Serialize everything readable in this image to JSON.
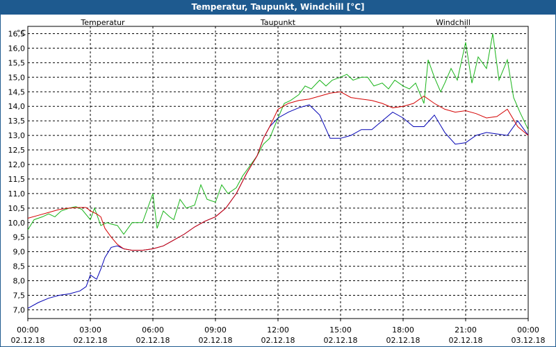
{
  "window": {
    "title": "Temperatur, Taupunkt, Windchill [°C]"
  },
  "colors": {
    "Temperatur": "#d40000",
    "Taupunkt": "#0000b4",
    "Windchill": "#18b418",
    "titlebar": "#1e5a8f"
  },
  "chart_data": {
    "type": "line",
    "title": "Temperatur, Taupunkt, Windchill [°C]",
    "ylabel": "°C",
    "xlabel": "",
    "ylim": [
      6.7,
      16.75
    ],
    "xlim": [
      0,
      24
    ],
    "y_ticks": [
      "7,0",
      "7,5",
      "8,0",
      "8,5",
      "9,0",
      "9,5",
      "10,0",
      "10,5",
      "11,0",
      "11,5",
      "12,0",
      "12,5",
      "13,0",
      "13,5",
      "14,0",
      "14,5",
      "15,0",
      "15,5",
      "16,0",
      "16,5"
    ],
    "x_ticks": [
      {
        "time": "00:00",
        "date": "02.12.18"
      },
      {
        "time": "03:00",
        "date": "02.12.18"
      },
      {
        "time": "06:00",
        "date": "02.12.18"
      },
      {
        "time": "09:00",
        "date": "02.12.18"
      },
      {
        "time": "12:00",
        "date": "02.12.18"
      },
      {
        "time": "15:00",
        "date": "02.12.18"
      },
      {
        "time": "18:00",
        "date": "02.12.18"
      },
      {
        "time": "21:00",
        "date": "02.12.18"
      },
      {
        "time": "00:00",
        "date": "03.12.18"
      }
    ],
    "grid": true,
    "legend": "top, above plot area",
    "x_unit": "hours since 02.12.18 00:00",
    "series": [
      {
        "name": "Temperatur",
        "x": [
          0,
          0.5,
          1,
          1.5,
          2,
          2.5,
          2.8,
          3,
          3.3,
          3.5,
          3.7,
          4,
          4.3,
          4.6,
          5,
          5.5,
          6,
          6.5,
          7,
          7.5,
          8,
          8.5,
          9,
          9.5,
          10,
          10.5,
          11,
          11.3,
          11.6,
          12,
          12.5,
          13,
          13.5,
          14,
          14.5,
          15,
          15.5,
          16,
          16.5,
          17,
          17.5,
          18,
          18.5,
          19,
          19.5,
          20,
          20.5,
          21,
          21.5,
          22,
          22.5,
          23,
          23.5,
          24
        ],
        "values": [
          10.15,
          10.25,
          10.35,
          10.45,
          10.5,
          10.52,
          10.52,
          10.4,
          10.3,
          10.2,
          9.8,
          9.5,
          9.25,
          9.1,
          9.05,
          9.05,
          9.1,
          9.2,
          9.4,
          9.6,
          9.85,
          10.05,
          10.2,
          10.5,
          11.0,
          11.7,
          12.3,
          12.9,
          13.3,
          13.9,
          14.1,
          14.2,
          14.25,
          14.35,
          14.45,
          14.5,
          14.3,
          14.25,
          14.2,
          14.1,
          13.95,
          14.0,
          14.1,
          14.35,
          14.1,
          13.9,
          13.8,
          13.85,
          13.75,
          13.6,
          13.65,
          13.9,
          13.3,
          13.0
        ],
        "stats": {
          "min": 9.05,
          "max": 14.5
        }
      },
      {
        "name": "Taupunkt",
        "x": [
          0,
          0.5,
          1,
          1.5,
          2,
          2.5,
          2.8,
          3,
          3.3,
          3.5,
          3.7,
          4,
          4.3,
          4.6,
          5,
          5.5,
          6,
          6.5,
          7,
          7.5,
          8,
          8.5,
          9,
          9.5,
          10,
          10.5,
          11,
          11.3,
          11.6,
          12,
          12.5,
          13,
          13.5,
          14,
          14.5,
          15,
          15.5,
          16,
          16.5,
          17,
          17.5,
          18,
          18.5,
          19,
          19.5,
          20,
          20.5,
          21,
          21.5,
          22,
          22.5,
          23,
          23.5,
          24
        ],
        "values": [
          7.05,
          7.25,
          7.4,
          7.5,
          7.55,
          7.65,
          7.8,
          8.2,
          8.05,
          8.4,
          8.8,
          9.15,
          9.2,
          9.1,
          9.05,
          9.05,
          9.1,
          9.2,
          9.4,
          9.6,
          9.85,
          10.05,
          10.2,
          10.5,
          11.0,
          11.7,
          12.3,
          12.9,
          13.3,
          13.6,
          13.8,
          13.95,
          14.05,
          13.7,
          12.9,
          12.9,
          13.0,
          13.2,
          13.2,
          13.5,
          13.8,
          13.6,
          13.3,
          13.3,
          13.7,
          13.1,
          12.7,
          12.75,
          13.0,
          13.1,
          13.05,
          13.0,
          13.5,
          13.0
        ],
        "stats": {
          "min": 7.05,
          "max": 14.05
        }
      },
      {
        "name": "Windchill",
        "x": [
          0,
          0.3,
          0.7,
          1,
          1.3,
          1.6,
          2,
          2.3,
          2.6,
          3,
          3.2,
          3.5,
          3.8,
          4,
          4.3,
          4.6,
          5,
          5.5,
          6,
          6.2,
          6.5,
          6.8,
          7,
          7.3,
          7.6,
          8,
          8.3,
          8.6,
          9,
          9.3,
          9.6,
          10,
          10.3,
          10.6,
          11,
          11.3,
          11.6,
          12,
          12.3,
          12.6,
          13,
          13.3,
          13.6,
          14,
          14.3,
          14.6,
          15,
          15.3,
          15.6,
          16,
          16.3,
          16.6,
          17,
          17.3,
          17.6,
          18,
          18.3,
          18.6,
          19,
          19.2,
          19.5,
          19.8,
          20,
          20.3,
          20.6,
          21,
          21.3,
          21.6,
          22,
          22.3,
          22.6,
          23,
          23.3,
          23.6,
          24
        ],
        "values": [
          9.75,
          10.1,
          10.2,
          10.3,
          10.2,
          10.4,
          10.5,
          10.55,
          10.45,
          10.1,
          10.5,
          9.9,
          10.0,
          9.95,
          9.9,
          9.6,
          10.0,
          10.0,
          11.0,
          9.8,
          10.4,
          10.2,
          10.1,
          10.8,
          10.5,
          10.6,
          11.3,
          10.8,
          10.7,
          11.3,
          11.0,
          11.2,
          11.6,
          11.9,
          12.3,
          12.7,
          12.9,
          13.6,
          14.1,
          14.2,
          14.4,
          14.7,
          14.6,
          14.9,
          14.7,
          14.9,
          15.0,
          15.1,
          14.9,
          15.0,
          15.0,
          14.7,
          14.8,
          14.6,
          14.9,
          14.7,
          14.6,
          14.8,
          14.1,
          15.6,
          15.0,
          14.5,
          14.8,
          15.3,
          14.9,
          16.2,
          14.8,
          15.7,
          15.3,
          16.5,
          14.9,
          15.6,
          14.3,
          13.8,
          13.2
        ],
        "stats": {
          "min": 9.6,
          "max": 16.5
        }
      }
    ]
  }
}
